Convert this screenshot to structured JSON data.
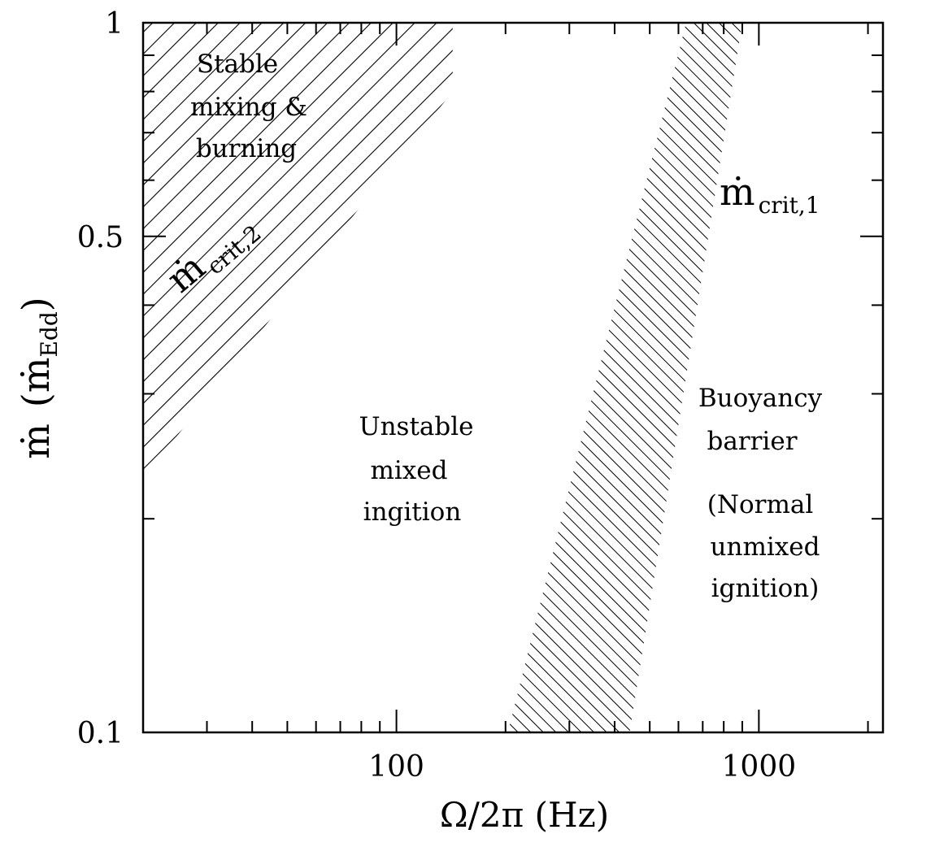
{
  "chart_data": {
    "type": "area",
    "xscale": "log",
    "yscale": "log",
    "xlim": [
      20,
      2200
    ],
    "ylim": [
      0.1,
      1
    ],
    "grid": false,
    "xlabel": "Ω/2π (Hz)",
    "ylabel_main": "ṁ",
    "ylabel_paren_open": "(",
    "ylabel_sub_main": "ṁ",
    "ylabel_sub": "Edd",
    "ylabel_paren_close": ")",
    "x_ticks": [
      {
        "value": 100,
        "label": "100"
      },
      {
        "value": 1000,
        "label": "1000"
      }
    ],
    "y_ticks": [
      {
        "value": 0.1,
        "label": "0.1"
      },
      {
        "value": 0.5,
        "label": "0.5"
      },
      {
        "value": 1,
        "label": "1"
      }
    ],
    "bands": [
      {
        "name_main": "ṁ",
        "name_sub": "crit,2",
        "style": "hatch-backslash",
        "upper": [
          [
            20,
            1.0
          ],
          [
            143,
            1.0
          ],
          [
            20,
            0.351
          ]
        ],
        "lower": [
          [
            20,
            0.228
          ],
          [
            143,
            0.8
          ],
          [
            143,
            1.0
          ]
        ]
      },
      {
        "name_main": "ṁ",
        "name_sub": "crit,1",
        "style": "hatch-slash-dense",
        "left_edge": [
          [
            203,
            0.1
          ],
          [
            630,
            1.0
          ]
        ],
        "right_edge": [
          [
            440,
            0.1
          ],
          [
            900,
            1.0
          ]
        ]
      }
    ],
    "regions": [
      {
        "lines": [
          "Stable",
          "mixing &",
          "burning"
        ]
      },
      {
        "lines": [
          "Unstable",
          "mixed",
          "ingition"
        ]
      },
      {
        "lines": [
          "Buoyancy",
          "barrier"
        ]
      },
      {
        "lines": [
          "(Normal",
          "unmixed",
          "ignition)"
        ]
      }
    ]
  }
}
